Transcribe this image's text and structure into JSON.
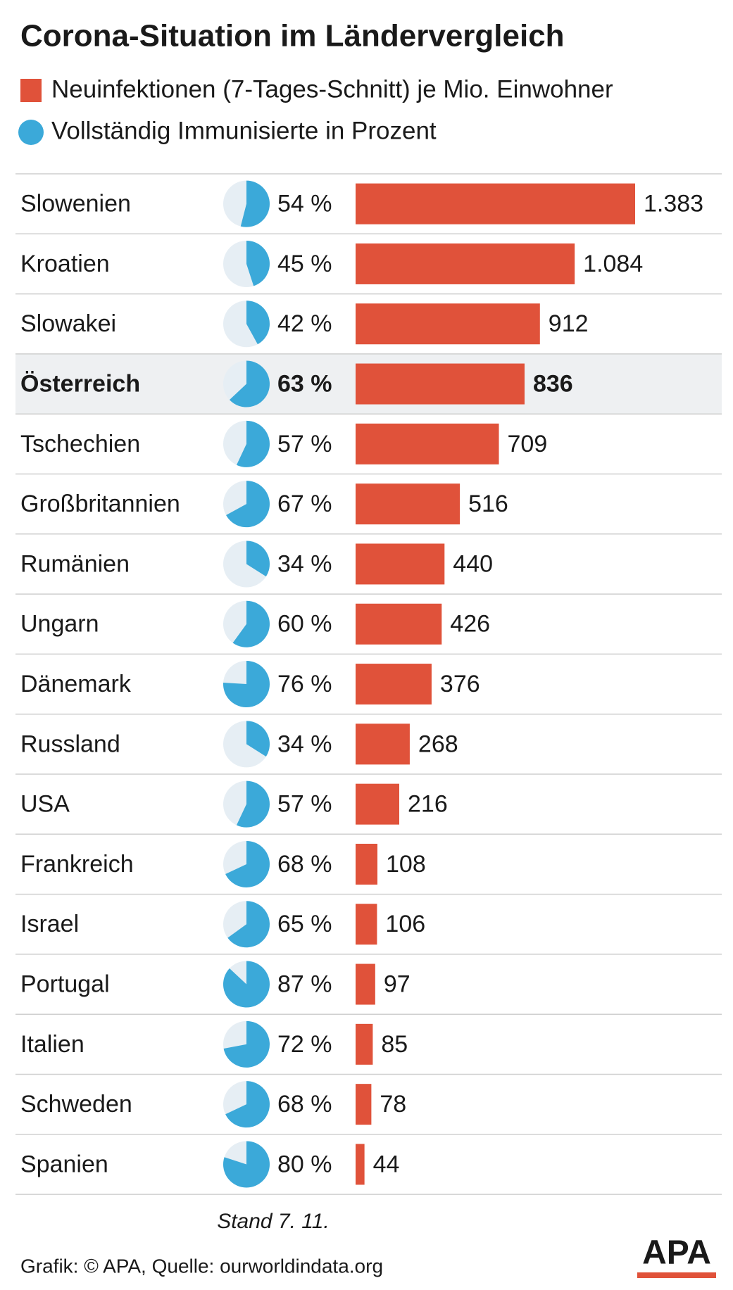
{
  "chart_data": {
    "type": "bar",
    "title": "Corona-Situation im Ländervergleich",
    "categories": [
      "Slowenien",
      "Kroatien",
      "Slowakei",
      "Österreich",
      "Tschechien",
      "Großbritannien",
      "Rumänien",
      "Ungarn",
      "Dänemark",
      "Russland",
      "USA",
      "Frankreich",
      "Israel",
      "Portugal",
      "Italien",
      "Schweden",
      "Spanien"
    ],
    "highlight": 3,
    "series": [
      {
        "type": "bar",
        "name": "Neuinfektionen (7-Tages-Schnitt) je Mio. Einwohner",
        "color": "#e0523a",
        "values": [
          1383,
          1084,
          912,
          836,
          709,
          516,
          440,
          426,
          376,
          268,
          216,
          108,
          106,
          97,
          85,
          78,
          44
        ],
        "value_labels": [
          "1.383",
          "1.084",
          "912",
          "836",
          "709",
          "516",
          "440",
          "426",
          "376",
          "268",
          "216",
          "108",
          "106",
          "97",
          "85",
          "78",
          "44"
        ]
      },
      {
        "type": "pie",
        "name": "Vollständig Immunisierte in Prozent",
        "color": "#3ba9d9",
        "values": [
          54,
          45,
          42,
          63,
          57,
          67,
          34,
          60,
          76,
          34,
          57,
          68,
          65,
          87,
          72,
          68,
          80
        ],
        "value_labels": [
          "54 %",
          "45 %",
          "42 %",
          "63 %",
          "57 %",
          "67 %",
          "34 %",
          "60 %",
          "76 %",
          "34 %",
          "57 %",
          "68 %",
          "65 %",
          "87 %",
          "72 %",
          "68 %",
          "80 %"
        ]
      }
    ],
    "note": "Stand 7. 11.",
    "source": "Grafik: © APA, Quelle: ourworldindata.org",
    "logo": "APA"
  }
}
